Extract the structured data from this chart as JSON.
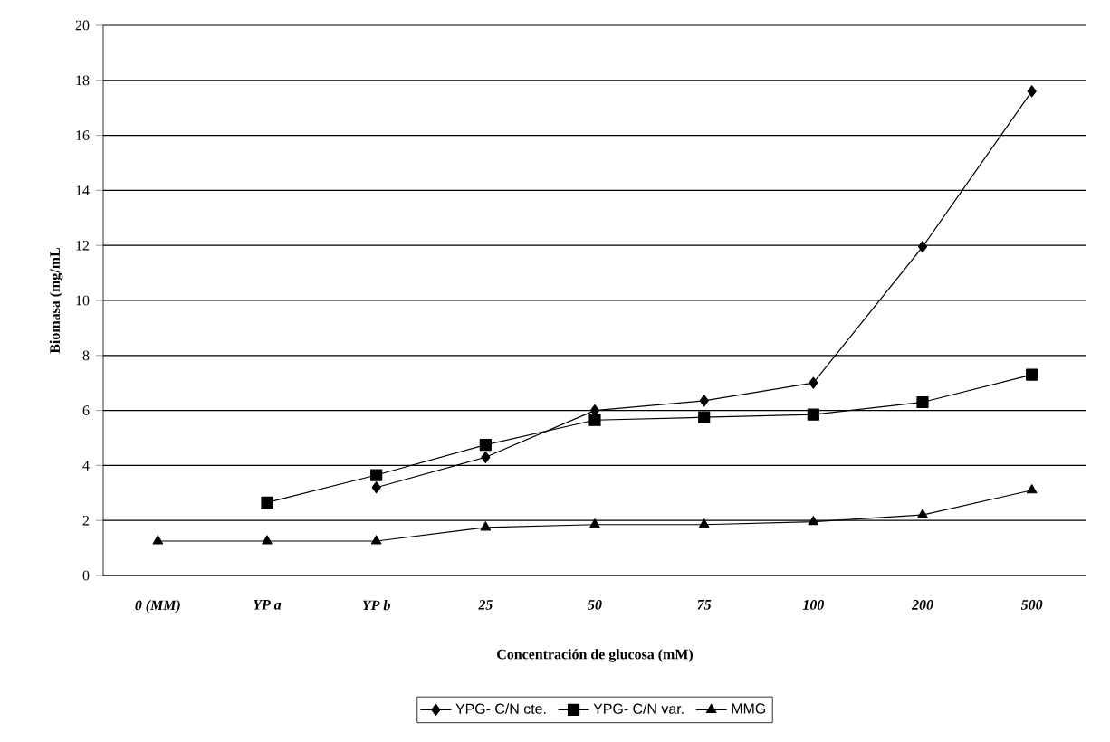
{
  "chart_data": {
    "type": "line",
    "xlabel": "Concentración de glucosa (mM)",
    "ylabel": "Biomasa (mg/mL",
    "categories": [
      "0 (MM)",
      "YP a",
      "YP b",
      "25",
      "50",
      "75",
      "100",
      "200",
      "500"
    ],
    "series": [
      {
        "name": "YPG- C/N cte.",
        "color": "#000000",
        "marker": "diamond",
        "values": [
          null,
          null,
          3.2,
          4.3,
          6.0,
          6.35,
          7.0,
          11.95,
          17.6
        ]
      },
      {
        "name": "YPG- C/N var.",
        "color": "#000000",
        "marker": "square",
        "values": [
          null,
          2.65,
          3.65,
          4.75,
          5.65,
          5.75,
          5.85,
          6.3,
          7.3
        ]
      },
      {
        "name": "MMG",
        "color": "#000000",
        "marker": "triangle",
        "values": [
          1.25,
          1.25,
          1.25,
          1.75,
          1.85,
          1.85,
          1.95,
          2.2,
          3.1
        ]
      }
    ],
    "ylim": [
      0,
      20
    ],
    "yticks": [
      0,
      2,
      4,
      6,
      8,
      10,
      12,
      14,
      16,
      18,
      20
    ],
    "grid": "y",
    "legend": "bottom",
    "line_style": "solid"
  }
}
